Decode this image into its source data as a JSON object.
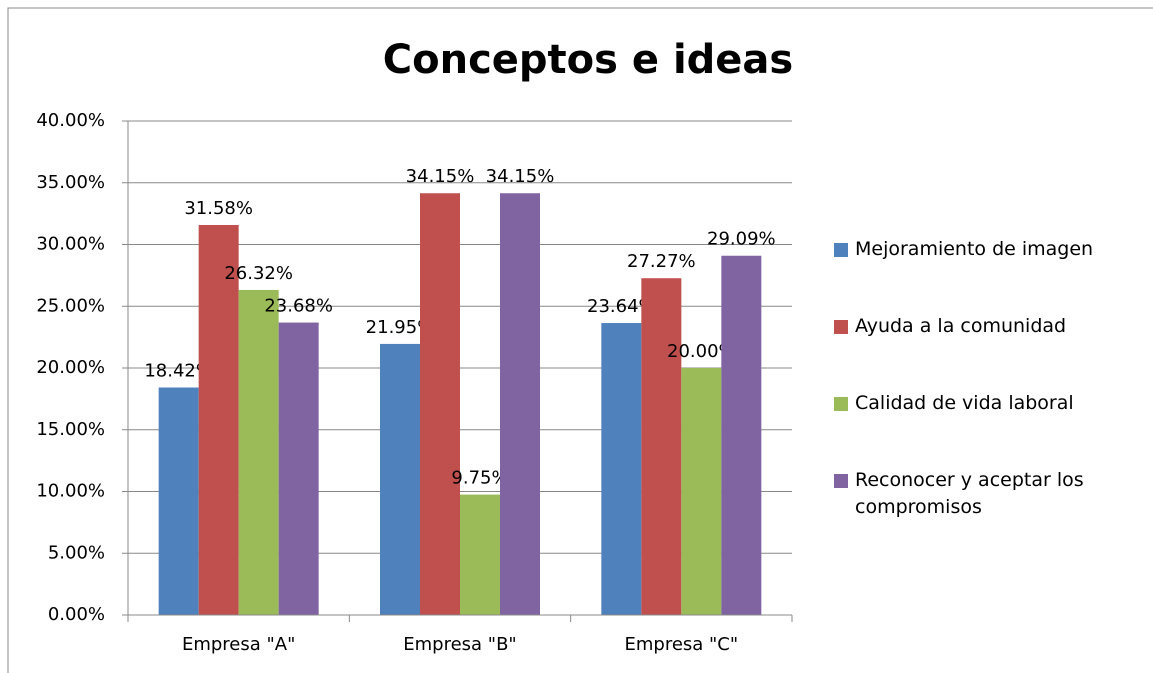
{
  "chart_data": {
    "type": "bar",
    "title": "Conceptos e ideas",
    "categories": [
      "Empresa \"A\"",
      "Empresa \"B\"",
      "Empresa \"C\""
    ],
    "series": [
      {
        "name": "Mejoramiento de imagen",
        "color": "#4f81bd",
        "values": [
          18.42,
          21.95,
          23.64
        ],
        "value_labels": [
          "18.42%",
          "21.95%",
          "23.64%"
        ]
      },
      {
        "name": "Ayuda a la comunidad",
        "color": "#c0504d",
        "values": [
          31.58,
          34.15,
          27.27
        ],
        "value_labels": [
          "31.58%",
          "34.15%",
          "27.27%"
        ]
      },
      {
        "name": "Calidad de vida laboral",
        "color": "#9bbb59",
        "values": [
          26.32,
          9.75,
          20.0
        ],
        "value_labels": [
          "26.32%",
          "9.75%",
          "20.00%"
        ]
      },
      {
        "name": "Reconocer y aceptar los compromisos",
        "color": "#8064a2",
        "values": [
          23.68,
          34.15,
          29.09
        ],
        "value_labels": [
          "23.68%",
          "34.15%",
          "29.09%"
        ]
      }
    ],
    "ylim": [
      0,
      40
    ],
    "yticks": [
      {
        "value": 0,
        "label": "0.00%"
      },
      {
        "value": 5,
        "label": "5.00%"
      },
      {
        "value": 10,
        "label": "10.00%"
      },
      {
        "value": 15,
        "label": "15.00%"
      },
      {
        "value": 20,
        "label": "20.00%"
      },
      {
        "value": 25,
        "label": "25.00%"
      },
      {
        "value": 30,
        "label": "30.00%"
      },
      {
        "value": 35,
        "label": "35.00%"
      },
      {
        "value": 40,
        "label": "40.00%"
      }
    ],
    "grid": true,
    "legend": "right"
  }
}
